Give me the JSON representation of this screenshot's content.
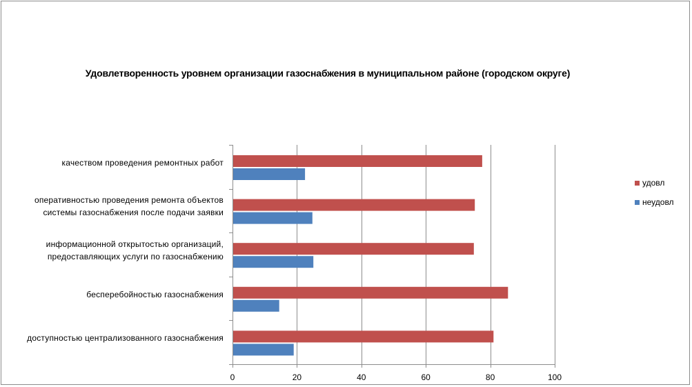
{
  "chart_data": {
    "type": "bar",
    "orientation": "horizontal",
    "title": "Удовлетворенность уровнем организации газоснабжения в муниципальном районе (городском округе)",
    "xlabel": "",
    "ylabel": "",
    "xlim": [
      0,
      100
    ],
    "ticks": [
      "0",
      "20",
      "40",
      "60",
      "80",
      "100"
    ],
    "grid": true,
    "legend_position": "right",
    "categories": [
      [
        "качеством проведения ремонтных работ"
      ],
      [
        "оперативностью проведения ремонта объектов",
        "системы газоснабжения после подачи заявки"
      ],
      [
        "информационной открытостью организаций,",
        "предоставляющих услуги по газоснабжению"
      ],
      [
        "бесперебойностью газоснабжения"
      ],
      [
        "доступностью централизованного газоснабжения"
      ]
    ],
    "series": [
      {
        "name": "удовл",
        "color": "#c0504d",
        "values": [
          77.5,
          75.2,
          74.9,
          85.5,
          81.0
        ]
      },
      {
        "name": "неудовл",
        "color": "#4f81bd",
        "values": [
          22.5,
          24.8,
          25.1,
          14.5,
          19.0
        ]
      }
    ]
  }
}
